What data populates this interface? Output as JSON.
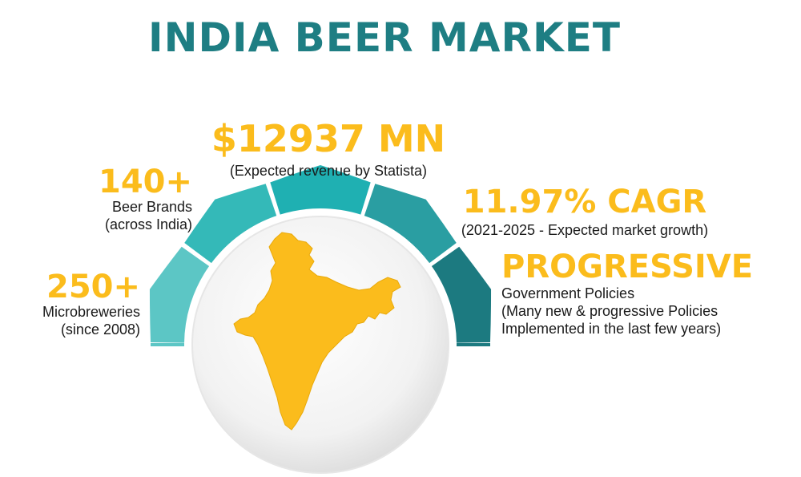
{
  "title": "INDIA BEER MARKET",
  "stats": {
    "revenue": {
      "value": "$12937 MN",
      "caption": "(Expected revenue by Statista)"
    },
    "brands": {
      "value": "140+",
      "line1": "Beer Brands",
      "line2": "(across India)"
    },
    "cagr": {
      "value": "11.97% CAGR",
      "caption": "(2021-2025 - Expected market growth)"
    },
    "microbreweries": {
      "value": "250+",
      "line1": "Microbreweries",
      "line2": "(since 2008)"
    },
    "policies": {
      "value": "PROGRESSIVE",
      "line1": "Government Policies",
      "line2": "(Many new & progressive Policies",
      "line3": "Implemented in the last few years)"
    }
  },
  "colors": {
    "title": "#1e7e83",
    "accent": "#fbbc1c",
    "segments": [
      "#5cc6c5",
      "#34b9b8",
      "#1fb0b2",
      "#2a9ea2",
      "#1c7a80"
    ]
  },
  "icons": {
    "map": "india-map-icon",
    "gauge": "gauge-arc-icon"
  }
}
